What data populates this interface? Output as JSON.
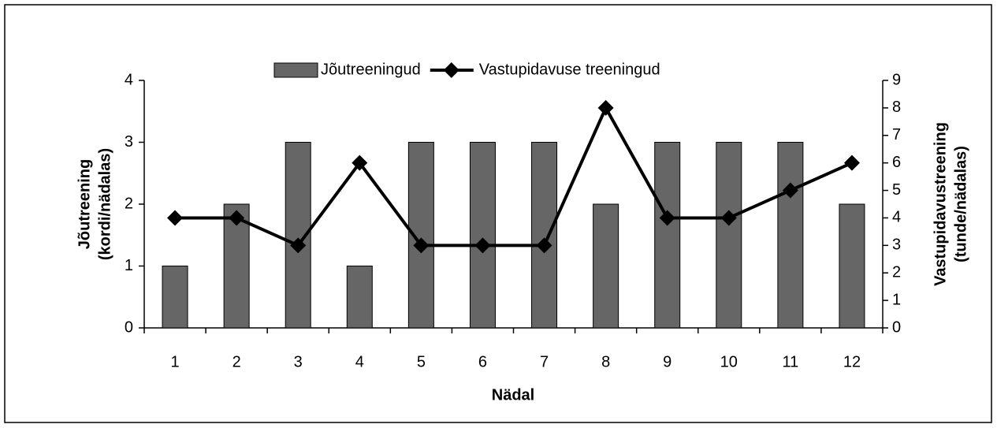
{
  "chart_data": {
    "type": "bar",
    "categories": [
      "1",
      "2",
      "3",
      "4",
      "5",
      "6",
      "7",
      "8",
      "9",
      "10",
      "11",
      "12"
    ],
    "series": [
      {
        "name": "Jõutreeningud",
        "type": "bar",
        "color": "#666666",
        "values": [
          1,
          2,
          3,
          1,
          3,
          3,
          3,
          2,
          3,
          3,
          3,
          2
        ]
      },
      {
        "name": "Vastupidavuse treeningud",
        "type": "line",
        "axis": "y2",
        "color": "#000000",
        "values": [
          4,
          4,
          3,
          6,
          3,
          3,
          3,
          8,
          4,
          4,
          5,
          6
        ]
      }
    ],
    "xlabel": "Nädal",
    "ylabel": [
      "Jõutreening",
      "(kordi/nädalas)"
    ],
    "y2label": [
      "Vastupidavustreening",
      "(tunde/nädalas)"
    ],
    "ylim": [
      0,
      4
    ],
    "yticks": [
      0,
      1,
      2,
      3,
      4
    ],
    "y2lim": [
      0,
      9
    ],
    "y2ticks": [
      0,
      1,
      2,
      3,
      4,
      5,
      6,
      7,
      8,
      9
    ],
    "legend": "top"
  }
}
